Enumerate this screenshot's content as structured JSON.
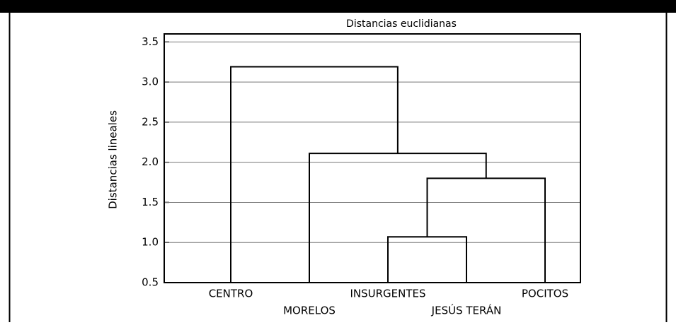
{
  "chart_data": {
    "type": "dendrogram",
    "title": "Distancias euclidianas",
    "y_label": "Distancias lineales",
    "leaves": [
      "CENTRO",
      "MORELOS",
      "INSURGENTES",
      "JESÚS TERÁN",
      "POCITOS"
    ],
    "merges": [
      {
        "left": 2,
        "right": 3,
        "height": 1.07
      },
      {
        "left": 5,
        "right": 4,
        "height": 1.8
      },
      {
        "left": 1,
        "right": 6,
        "height": 2.11
      },
      {
        "left": 0,
        "right": 7,
        "height": 3.19
      }
    ],
    "ylim": [
      0.5,
      3.6
    ],
    "yticks": [
      {
        "value": 0.5,
        "label": "0.5"
      },
      {
        "value": 1.0,
        "label": "1.0"
      },
      {
        "value": 1.5,
        "label": "1.5"
      },
      {
        "value": 2.0,
        "label": "2.0"
      },
      {
        "value": 2.5,
        "label": "2.5"
      },
      {
        "value": 3.0,
        "label": "3.0"
      },
      {
        "value": 3.5,
        "label": "3.5"
      }
    ],
    "grid": true,
    "color": "#000000"
  }
}
